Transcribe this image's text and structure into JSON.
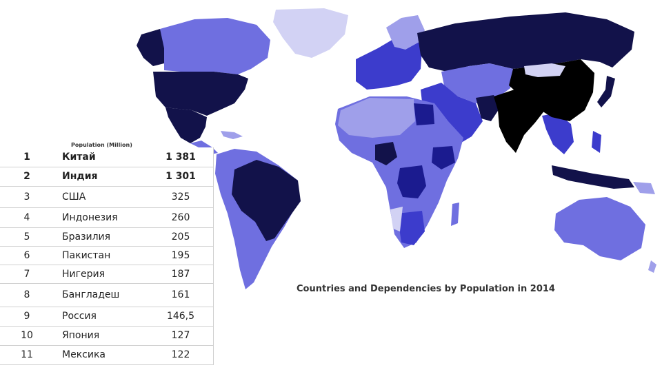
{
  "map": {
    "title": "Countries and Dependencies by Population in 2014",
    "legend_caption": "Population (Million)",
    "colors": {
      "ocean": "#ffffff",
      "very_high": "#000000",
      "high": "#12124a",
      "medium_high": "#1b1b8f",
      "medium": "#3c3ccc",
      "medium_low": "#6f6fe0",
      "low": "#9f9fea",
      "very_low": "#d2d2f4"
    }
  },
  "table": {
    "rows": [
      {
        "rank": "1",
        "name": "Китай",
        "value": "1 381",
        "bold": true
      },
      {
        "rank": "2",
        "name": "Индия",
        "value": "1 301",
        "bold": true
      },
      {
        "rank": "3",
        "name": "США",
        "value": "325",
        "bold": false
      },
      {
        "rank": "4",
        "name": "Индонезия",
        "value": "260",
        "bold": false
      },
      {
        "rank": "5",
        "name": "Бразилия",
        "value": "205",
        "bold": false
      },
      {
        "rank": "6",
        "name": "Пакистан",
        "value": "195",
        "bold": false
      },
      {
        "rank": "7",
        "name": "Нигерия",
        "value": "187",
        "bold": false
      },
      {
        "rank": "8",
        "name": "Бангладеш",
        "value": "161",
        "bold": false
      },
      {
        "rank": "9",
        "name": "Россия",
        "value": "146,5",
        "bold": false
      },
      {
        "rank": "10",
        "name": "Япония",
        "value": "127",
        "bold": false
      },
      {
        "rank": "11",
        "name": "Мексика",
        "value": "122",
        "bold": false
      }
    ]
  }
}
